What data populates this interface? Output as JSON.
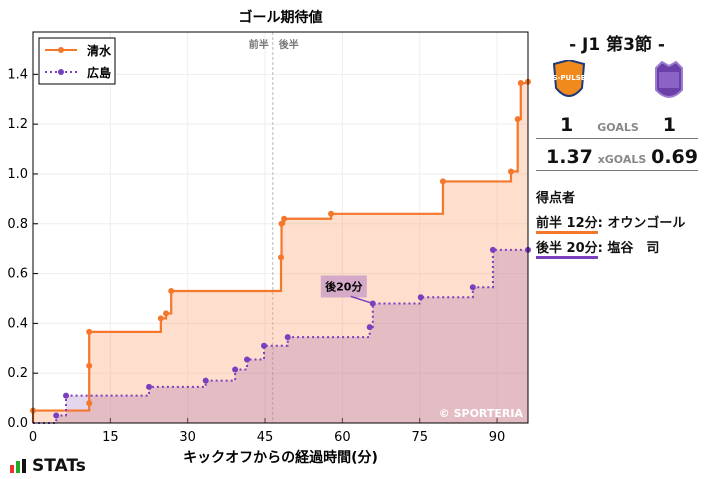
{
  "chart_data": {
    "type": "line",
    "title": "ゴール期待値",
    "xlabel": "キックオフからの経過時間(分)",
    "ylabel": "",
    "xlim": [
      0,
      96
    ],
    "ylim": [
      0,
      1.57
    ],
    "xticks": [
      0,
      15,
      30,
      45,
      60,
      75,
      90
    ],
    "yticks": [
      0.0,
      0.2,
      0.4,
      0.6,
      0.8,
      1.0,
      1.2,
      1.4
    ],
    "grid": true,
    "legend": "top-left",
    "halftime_labels": [
      "前半",
      "後半"
    ],
    "halftime_x": 46.5,
    "annotation": {
      "text": "後20分",
      "x": 65.9,
      "y": 0.48
    },
    "watermark": "© SPORTERIA",
    "series": [
      {
        "name": "清水",
        "color": "#f4772b",
        "style": "solid",
        "x": [
          0,
          0,
          10.9,
          10.9,
          10.9,
          24.8,
          25.8,
          26.8,
          48.1,
          48.2,
          48.7,
          57.8,
          79.5,
          92.7,
          94,
          94.6,
          96
        ],
        "y": [
          0,
          0.05,
          0.08,
          0.23,
          0.366,
          0.42,
          0.44,
          0.53,
          0.665,
          0.8,
          0.82,
          0.84,
          0.97,
          1.01,
          1.22,
          1.365,
          1.37
        ]
      },
      {
        "name": "広島",
        "color": "#7a3fbf",
        "style": "dotted",
        "x": [
          0,
          4.5,
          6.4,
          22.5,
          33.5,
          39.2,
          41.5,
          44.8,
          49.4,
          65.3,
          65.9,
          75.2,
          85.3,
          89.2,
          96
        ],
        "y": [
          0,
          0.03,
          0.11,
          0.145,
          0.17,
          0.215,
          0.255,
          0.31,
          0.345,
          0.385,
          0.48,
          0.505,
          0.545,
          0.695,
          0.695
        ]
      }
    ]
  },
  "match": {
    "title": "- J1 第3節 -",
    "home_goals": "1",
    "away_goals": "1",
    "goals_label": "GOALS",
    "home_xg": "1.37",
    "away_xg": "0.69",
    "xg_label": "xGOALS"
  },
  "scorers": {
    "heading": "得点者",
    "items": [
      {
        "time": "前半 12分",
        "name": ": オウンゴール"
      },
      {
        "time": "後半 20分",
        "name": ": 塩谷　司"
      }
    ]
  },
  "brand": "STATs"
}
